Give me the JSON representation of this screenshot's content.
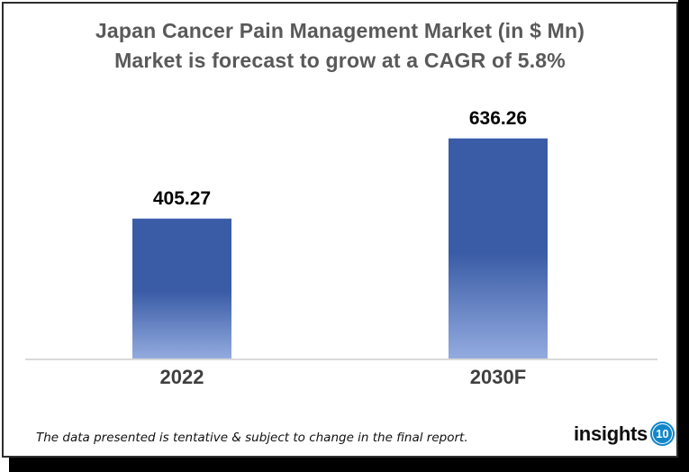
{
  "chart_data": {
    "type": "bar",
    "title": "Japan Cancer Pain Management Market (in $ Mn)",
    "subtitle": "Market is forecast to grow at a CAGR of 5.8%",
    "cagr": "5.8%",
    "categories": [
      "2022",
      "2030F"
    ],
    "values": [
      405.27,
      636.26
    ],
    "xlabel": "",
    "ylabel": "",
    "gridlines": false,
    "legend_position": "none",
    "data_labels_visible": true,
    "axis_line_visible": true
  },
  "footer": {
    "disclaimer": "The data presented is tentative & subject to change in the final report.",
    "logo_text": "insights",
    "logo_number": "10"
  },
  "colors": {
    "bar_top": "#3a5ca6",
    "bar_bottom": "#93abdf",
    "baseline": "#d9d9d9",
    "title_text": "#595959",
    "axis_text": "#3f3f3f",
    "label_text": "#000000",
    "logo_blue": "#1386c9",
    "frame_black": "#000000"
  }
}
